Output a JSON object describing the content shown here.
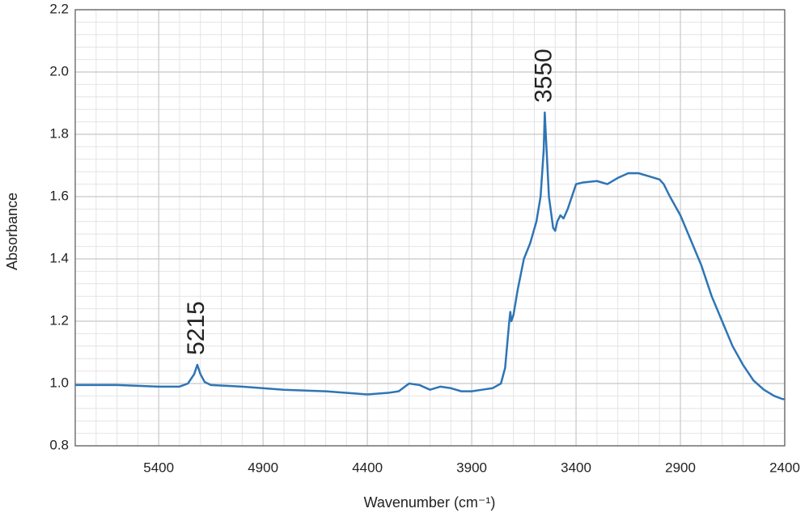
{
  "chart_data": {
    "type": "line",
    "x_label": "Wavenumber (cm⁻¹)",
    "y_label": "Absorbance",
    "xlim": [
      5800,
      2400
    ],
    "xticks": [
      5400,
      4900,
      4400,
      3900,
      3400,
      2900,
      2400
    ],
    "ylim": [
      0.8,
      2.2
    ],
    "yticks": [
      0.8,
      {
        "value": 1.0,
        "label": "1.0"
      },
      1.2,
      1.4,
      1.6,
      1.8,
      {
        "value": 2.0,
        "label": "2.0"
      },
      2.2
    ],
    "grid": true,
    "minor_grid_divisions": 5,
    "annotations": [
      "5215",
      "3550"
    ],
    "series": [
      {
        "color": "#2e75b6",
        "x": [
          5800,
          5600,
          5400,
          5300,
          5260,
          5230,
          5215,
          5200,
          5180,
          5150,
          5000,
          4800,
          4600,
          4400,
          4300,
          4250,
          4200,
          4150,
          4100,
          4050,
          4000,
          3950,
          3900,
          3850,
          3800,
          3760,
          3740,
          3720,
          3715,
          3710,
          3700,
          3680,
          3650,
          3620,
          3590,
          3570,
          3555,
          3550,
          3545,
          3530,
          3510,
          3500,
          3490,
          3475,
          3460,
          3440,
          3420,
          3400,
          3370,
          3300,
          3250,
          3200,
          3150,
          3100,
          3050,
          3000,
          2980,
          2950,
          2900,
          2850,
          2800,
          2750,
          2700,
          2650,
          2600,
          2550,
          2500,
          2450,
          2410,
          2400
        ],
        "values": [
          0.995,
          0.995,
          0.99,
          0.99,
          1.0,
          1.03,
          1.06,
          1.03,
          1.005,
          0.995,
          0.99,
          0.98,
          0.975,
          0.965,
          0.97,
          0.975,
          1.0,
          0.995,
          0.98,
          0.99,
          0.985,
          0.975,
          0.975,
          0.98,
          0.985,
          1.0,
          1.05,
          1.2,
          1.23,
          1.2,
          1.22,
          1.3,
          1.4,
          1.45,
          1.52,
          1.6,
          1.75,
          1.87,
          1.8,
          1.6,
          1.5,
          1.49,
          1.52,
          1.54,
          1.53,
          1.56,
          1.6,
          1.64,
          1.645,
          1.65,
          1.64,
          1.66,
          1.675,
          1.675,
          1.665,
          1.655,
          1.64,
          1.6,
          1.54,
          1.46,
          1.38,
          1.28,
          1.2,
          1.12,
          1.06,
          1.01,
          0.98,
          0.96,
          0.95,
          0.95
        ]
      }
    ]
  }
}
